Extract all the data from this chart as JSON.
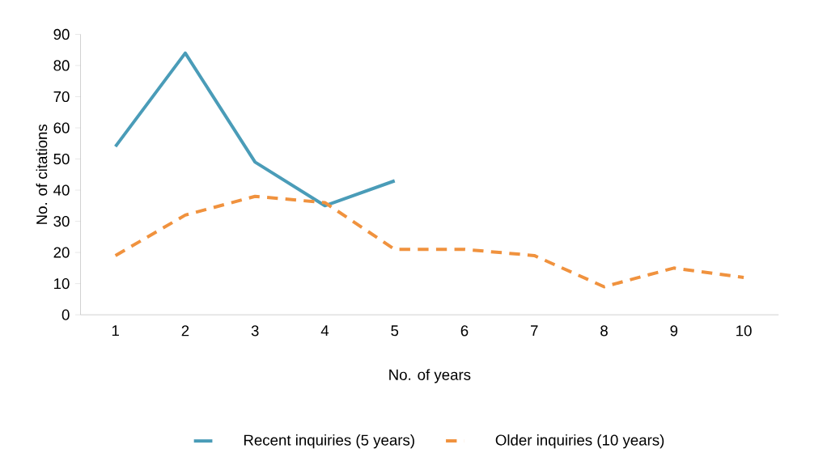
{
  "chart_data": {
    "type": "line",
    "xlabel": "No. of years",
    "ylabel": "No. of citations",
    "categories": [
      "1",
      "2",
      "3",
      "4",
      "5",
      "6",
      "7",
      "8",
      "9",
      "10"
    ],
    "series": [
      {
        "name": "Recent inquiries (5 years)",
        "color": "#4a9cb8",
        "line_style": "solid",
        "values": [
          54,
          84,
          49,
          35,
          43,
          null,
          null,
          null,
          null,
          null
        ]
      },
      {
        "name": "Older inquiries (10 years)",
        "color": "#f0923e",
        "line_style": "dashed",
        "values": [
          19,
          32,
          38,
          36,
          21,
          21,
          19,
          9,
          15,
          12
        ]
      }
    ],
    "ylim": [
      0,
      90
    ],
    "yticks": [
      0,
      10,
      20,
      30,
      40,
      50,
      60,
      70,
      80,
      90
    ],
    "grid": false,
    "legend": "bottom",
    "marker": "none"
  }
}
